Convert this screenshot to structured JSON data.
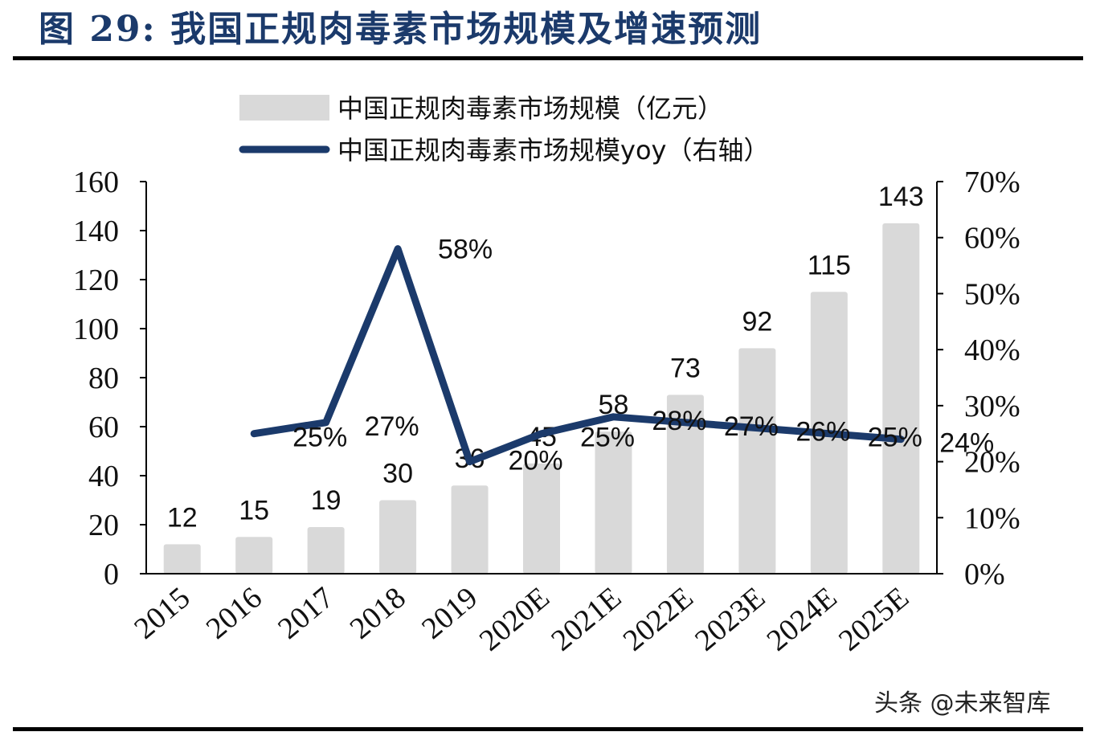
{
  "figure": {
    "title": "图 29:  我国正规肉毒素市场规模及增速预测",
    "watermark": "头条 @未来智库"
  },
  "chart_data": {
    "type": "bar",
    "categories": [
      "2015",
      "2016",
      "2017",
      "2018",
      "2019",
      "2020E",
      "2021E",
      "2022E",
      "2023E",
      "2024E",
      "2025E"
    ],
    "series": [
      {
        "name": "中国正规肉毒素市场规模（亿元）",
        "type": "bar",
        "axis": "left",
        "color": "#d9d9d9",
        "values": [
          12,
          15,
          19,
          30,
          36,
          45,
          58,
          73,
          92,
          115,
          143
        ],
        "labels": [
          "12",
          "15",
          "19",
          "30",
          "36",
          "45",
          "58",
          "73",
          "92",
          "115",
          "143"
        ]
      },
      {
        "name": "中国正规肉毒素市场规模yoy（右轴）",
        "type": "line",
        "axis": "right",
        "color": "#1b3a6b",
        "values": [
          null,
          25,
          27,
          58,
          20,
          25,
          28,
          27,
          26,
          25,
          24
        ],
        "labels": [
          "",
          "25%",
          "27%",
          "58%",
          "20%",
          "25%",
          "28%",
          "27%",
          "26%",
          "25%",
          "24%"
        ]
      }
    ],
    "y_left": {
      "ylim": [
        0,
        160
      ],
      "ticks": [
        "0",
        "20",
        "40",
        "60",
        "80",
        "100",
        "120",
        "140",
        "160"
      ]
    },
    "y_right": {
      "ylim": [
        0,
        70
      ],
      "ticks": [
        "0%",
        "10%",
        "20%",
        "30%",
        "40%",
        "50%",
        "60%",
        "70%"
      ]
    },
    "legend": {
      "position": "top"
    },
    "grid": false
  }
}
